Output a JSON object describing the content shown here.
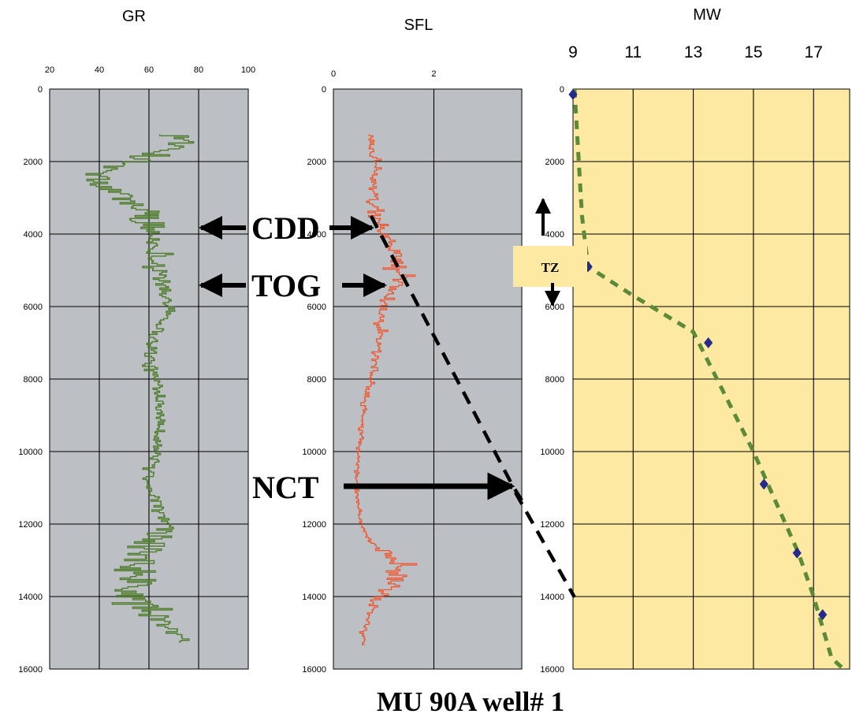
{
  "figure": {
    "caption": "MU 90A well# 1",
    "depth_ticks": [
      "0",
      "2000",
      "4000",
      "6000",
      "8000",
      "10000",
      "12000",
      "14000",
      "16000"
    ],
    "colors": {
      "log_background": "#bcc0c5",
      "mw_background": "#fde9a2",
      "gr_trace": "#4f7d2d",
      "sfl_trace": "#f2522a",
      "mw_points": "#252a8c",
      "mw_trend": "#5b8a38"
    }
  },
  "chart_data": [
    {
      "type": "line",
      "title": "GR",
      "xlim": [
        20,
        100
      ],
      "xticks": [
        20,
        40,
        60,
        80,
        100
      ],
      "ylim": [
        0,
        16000
      ],
      "y_inverted": true,
      "grid": true,
      "samples": {
        "depth_start": 1250,
        "depth_end": 15250,
        "step": 40,
        "depth_knots": [
          1250,
          1500,
          2000,
          2300,
          2600,
          3200,
          3600,
          4200,
          5000,
          5600,
          6000,
          6800,
          7600,
          8400,
          9200,
          10000,
          10800,
          11600,
          12200,
          12600,
          13200,
          13800,
          14200,
          14700,
          15250
        ],
        "value_knots": [
          75,
          72,
          52,
          38,
          40,
          55,
          60,
          62,
          65,
          65,
          70,
          62,
          60,
          65,
          65,
          63,
          60,
          64,
          66,
          58,
          55,
          52,
          57,
          65,
          75
        ],
        "amplitude_knots": [
          10,
          10,
          12,
          12,
          12,
          12,
          15,
          8,
          8,
          8,
          5,
          5,
          6,
          5,
          4,
          4,
          4,
          4,
          12,
          16,
          18,
          18,
          14,
          10,
          6
        ]
      }
    },
    {
      "type": "line",
      "title": "SFL",
      "xlim": [
        0,
        3.75
      ],
      "xticks": [
        0,
        2
      ],
      "ylim": [
        0,
        16000
      ],
      "y_inverted": true,
      "grid": true,
      "samples": {
        "depth_start": 1250,
        "depth_end": 15350,
        "step": 40,
        "depth_knots": [
          1250,
          2000,
          3000,
          3600,
          4000,
          4600,
          5200,
          5800,
          6600,
          7400,
          8200,
          9000,
          10000,
          11000,
          12000,
          12500,
          12800,
          13300,
          13800,
          14100,
          14600,
          15000,
          15350
        ],
        "value_knots": [
          0.75,
          0.8,
          0.8,
          0.9,
          1.0,
          1.25,
          1.35,
          1.0,
          0.95,
          0.85,
          0.7,
          0.6,
          0.5,
          0.45,
          0.55,
          0.75,
          1.1,
          1.3,
          1.1,
          0.8,
          0.7,
          0.6,
          0.6
        ],
        "amplitude_knots": [
          0.15,
          0.15,
          0.2,
          0.2,
          0.2,
          0.3,
          0.3,
          0.2,
          0.15,
          0.1,
          0.1,
          0.08,
          0.05,
          0.05,
          0.05,
          0.1,
          0.4,
          0.5,
          0.4,
          0.2,
          0.1,
          0.08,
          0.05
        ]
      },
      "nct_trend": [
        {
          "x": 0.75,
          "y": 3500
        },
        {
          "x": 3.55,
          "y": 10900
        },
        {
          "x": 3.75,
          "y": 11350
        }
      ]
    },
    {
      "type": "scatter",
      "title": "MW",
      "xlim": [
        9,
        18.2
      ],
      "xticks": [
        9,
        11,
        13,
        15,
        17
      ],
      "ylim": [
        0,
        16000
      ],
      "y_inverted": true,
      "grid": true,
      "points": [
        {
          "x": 9.0,
          "y": 150
        },
        {
          "x": 9.5,
          "y": 4900
        },
        {
          "x": 13.5,
          "y": 7000
        },
        {
          "x": 15.35,
          "y": 10900
        },
        {
          "x": 16.45,
          "y": 12800
        },
        {
          "x": 17.3,
          "y": 14500
        }
      ],
      "trend": [
        {
          "x": 9.05,
          "y": 0
        },
        {
          "x": 9.3,
          "y": 3500
        },
        {
          "x": 9.5,
          "y": 4900
        },
        {
          "x": 11.0,
          "y": 5700
        },
        {
          "x": 13.0,
          "y": 6700
        },
        {
          "x": 15.0,
          "y": 10000
        },
        {
          "x": 16.5,
          "y": 12800
        },
        {
          "x": 17.0,
          "y": 14000
        },
        {
          "x": 17.6,
          "y": 15700
        },
        {
          "x": 18.0,
          "y": 16000
        }
      ]
    }
  ],
  "annotations": {
    "cdd": "CDD",
    "tog": "TOG",
    "nct": "NCT",
    "tz": "TZ"
  }
}
